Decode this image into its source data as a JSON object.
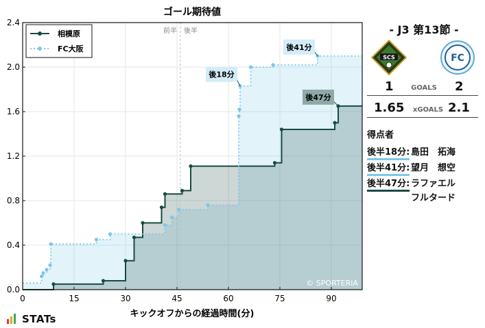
{
  "chart_data": {
    "type": "area",
    "title": "ゴール期待値",
    "xlabel": "キックオフからの経過時間(分)",
    "ylabel": "",
    "xlim": [
      0,
      99
    ],
    "ylim": [
      0,
      2.4
    ],
    "xticks": [
      0,
      15,
      30,
      45,
      60,
      75,
      90
    ],
    "yticks": [
      0.0,
      0.4,
      0.8,
      1.2,
      1.6,
      2.0,
      2.4
    ],
    "grid": true,
    "legend_position": "top-left",
    "halftime_marker": {
      "x": 46,
      "labels": [
        "前半",
        "後半"
      ]
    },
    "watermark": "© SPORTERIA",
    "series": [
      {
        "name": "相模原",
        "color": "#1a4a42",
        "style": "solid",
        "points": [
          [
            0,
            0
          ],
          [
            9,
            0.05
          ],
          [
            23.5,
            0.08
          ],
          [
            30,
            0.26
          ],
          [
            32.5,
            0.47
          ],
          [
            35,
            0.6
          ],
          [
            40.5,
            0.74
          ],
          [
            41.5,
            0.86
          ],
          [
            46.5,
            0.89
          ],
          [
            49,
            1.11
          ],
          [
            73.5,
            1.14
          ],
          [
            75.5,
            1.44
          ],
          [
            91,
            1.5
          ],
          [
            92,
            1.65
          ],
          [
            99,
            1.65
          ]
        ]
      },
      {
        "name": "FC大阪",
        "color": "#7cc7ea",
        "style": "dotted",
        "points": [
          [
            0,
            0.06
          ],
          [
            5.5,
            0.12
          ],
          [
            6,
            0.15
          ],
          [
            7,
            0.18
          ],
          [
            8,
            0.22
          ],
          [
            8.2,
            0.41
          ],
          [
            21.5,
            0.45
          ],
          [
            25.5,
            0.5
          ],
          [
            41.5,
            0.58
          ],
          [
            43.5,
            0.65
          ],
          [
            45.5,
            0.72
          ],
          [
            54,
            0.76
          ],
          [
            63,
            1.56
          ],
          [
            63.2,
            1.62
          ],
          [
            63.4,
            1.83
          ],
          [
            66.5,
            2.0
          ],
          [
            73,
            2.02
          ],
          [
            86,
            2.1
          ],
          [
            99,
            2.1
          ]
        ]
      }
    ],
    "annotations": [
      {
        "label": "後18分",
        "x": 63.4,
        "y": 1.83,
        "series": "FC大阪"
      },
      {
        "label": "後41分",
        "x": 86,
        "y": 2.1,
        "series": "FC大阪"
      },
      {
        "label": "後47分",
        "x": 92,
        "y": 1.65,
        "series": "相模原"
      }
    ]
  },
  "match": {
    "matchday": "- J3 第13節 -",
    "home_crest_text": "SCS",
    "away_crest_text": "FC",
    "home_goals": "1",
    "away_goals": "2",
    "goals_label": "GOALS",
    "home_xg": "1.65",
    "away_xg": "2.1",
    "xg_label": "xGOALS"
  },
  "scorers": {
    "title": "得点者",
    "items": [
      {
        "time": "後半18分:",
        "name": "島田　拓海",
        "color": "#7cc7ea"
      },
      {
        "time": "後半41分:",
        "name": "望月　想空",
        "color": "#7cc7ea"
      },
      {
        "time": "後半47分:",
        "name": "ラファエル\nフルタード",
        "color": "#1a4a42"
      }
    ]
  },
  "footer": {
    "brand": "STATs"
  }
}
